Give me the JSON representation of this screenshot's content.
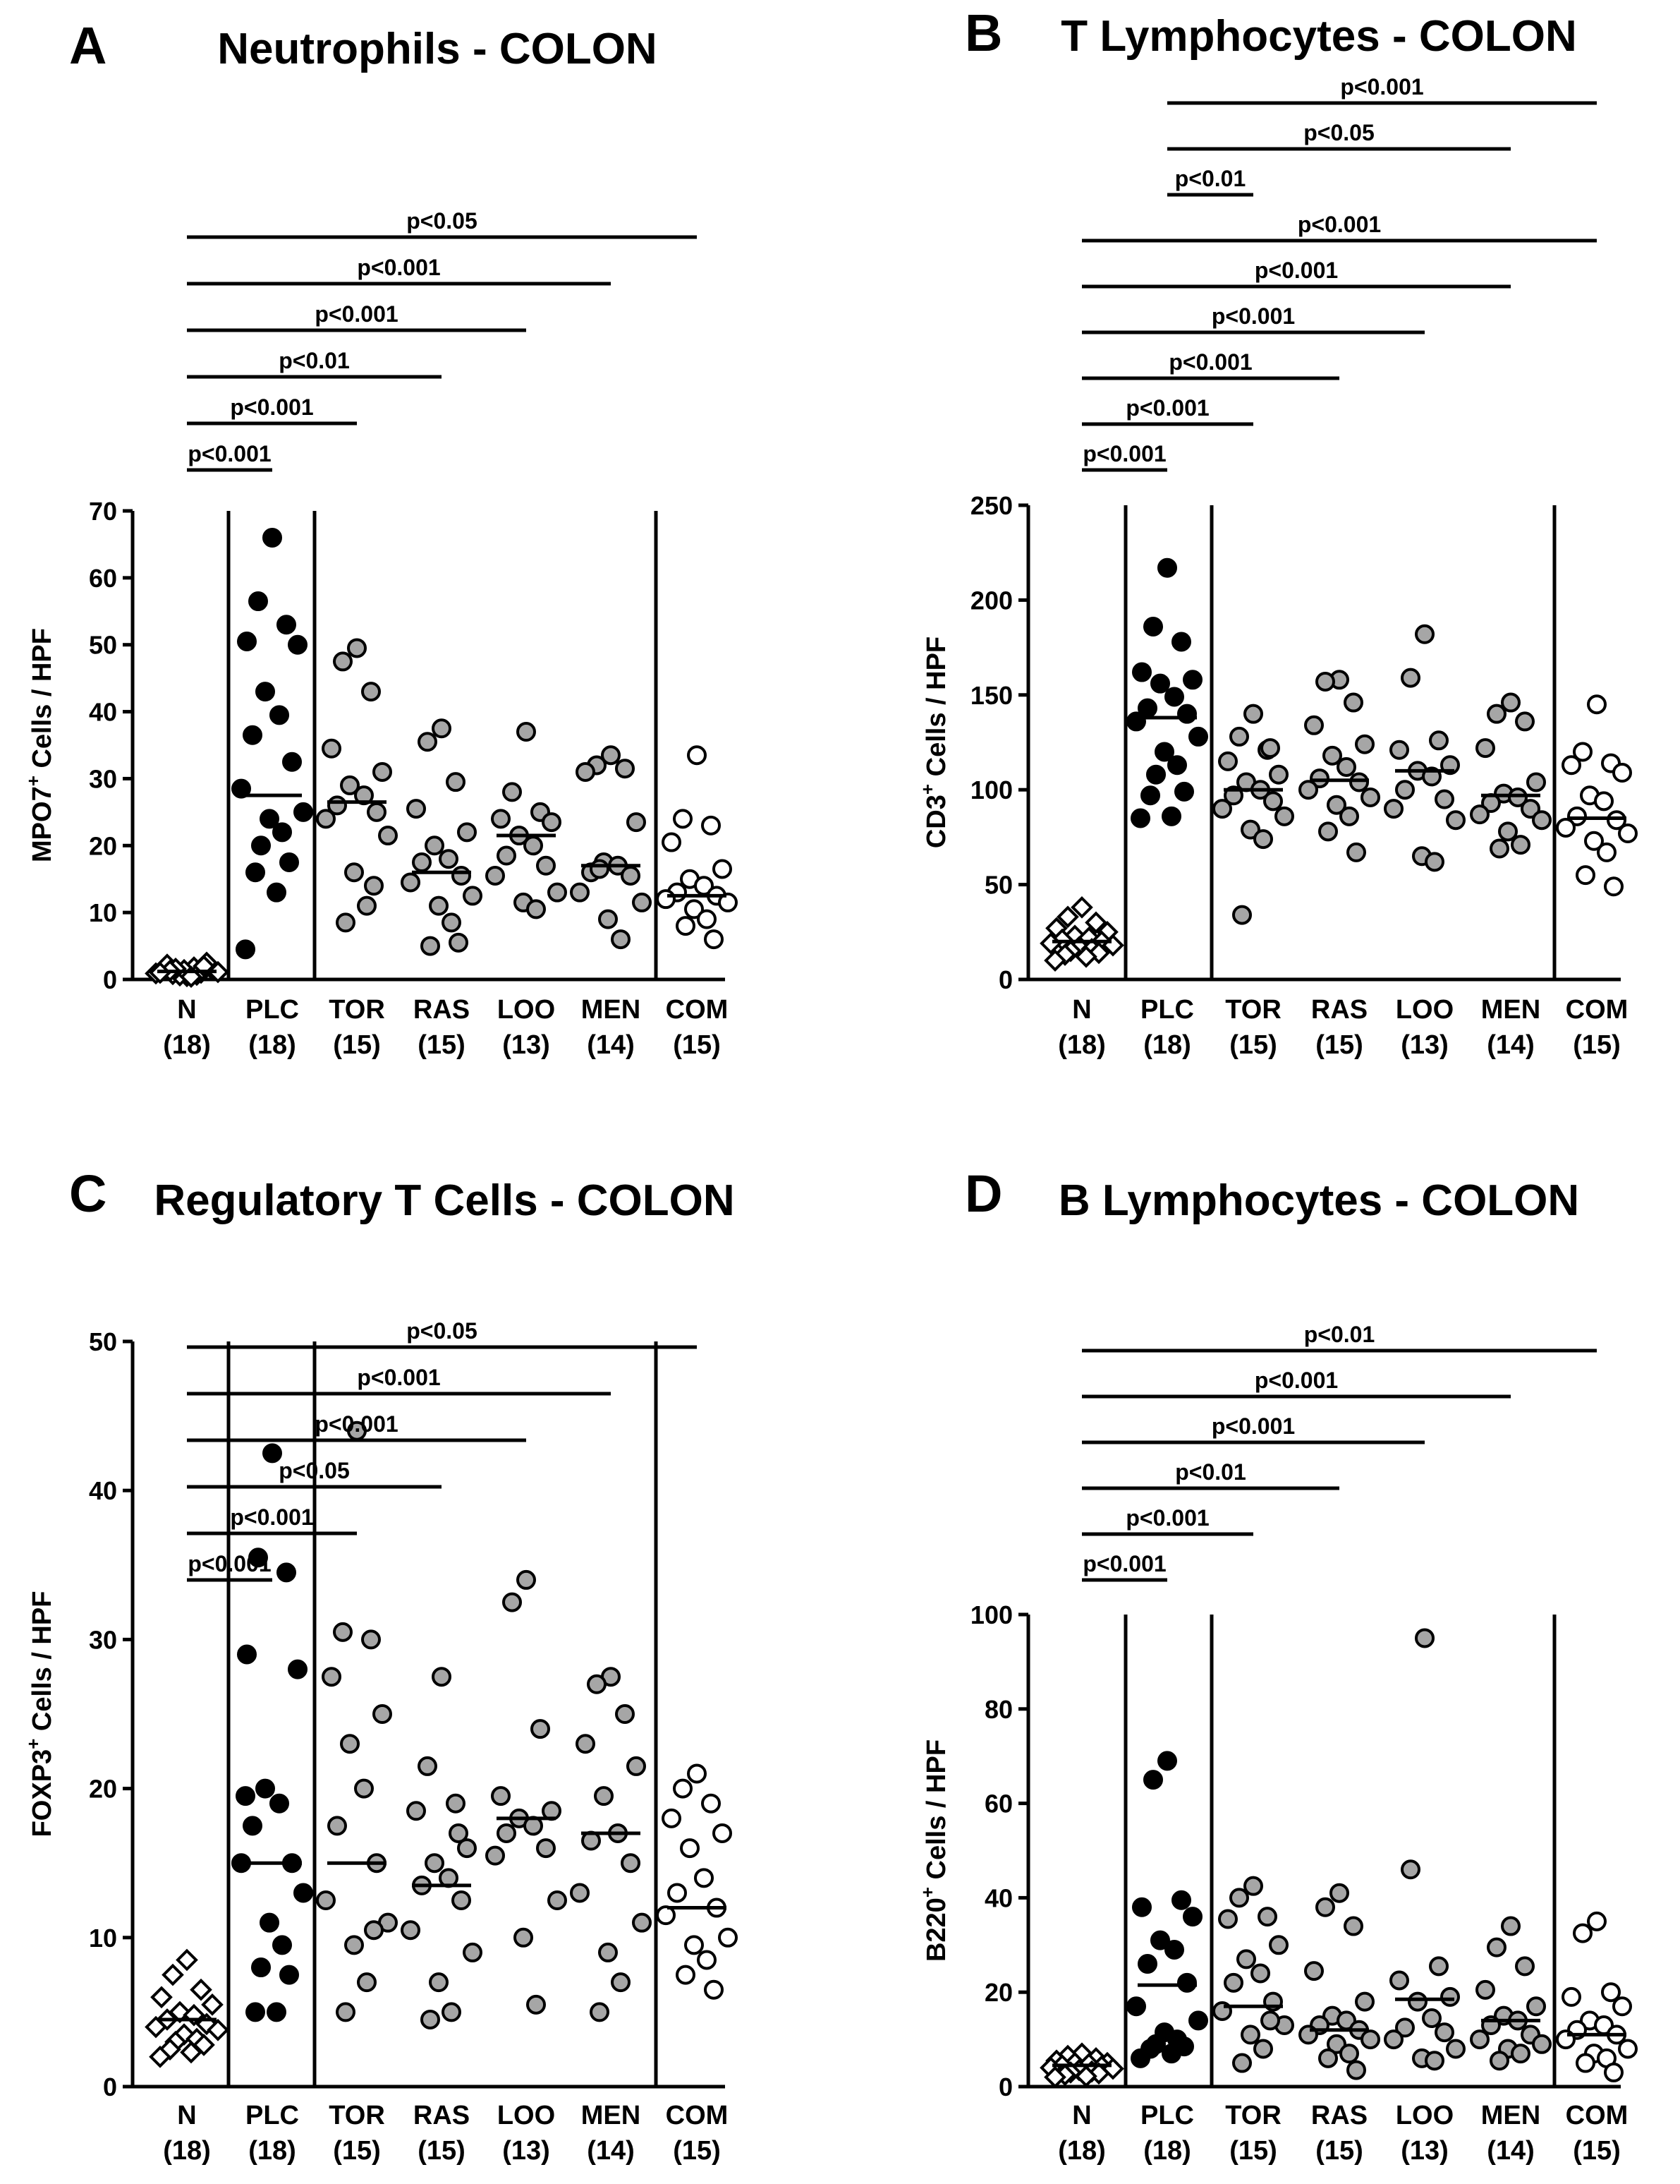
{
  "chart_data": [
    {
      "panel": "A",
      "type": "scatter",
      "title": "Neutrophils - COLON",
      "ylabel_main": "MPO7",
      "ylabel_sup": "+",
      "ylabel_rest": "  Cells / HPF",
      "ylim": [
        0,
        70
      ],
      "yticks": [
        0,
        10,
        20,
        30,
        40,
        50,
        60,
        70
      ],
      "dividers_after": [
        0,
        1,
        5
      ],
      "categories": [
        {
          "label": "N",
          "n": "(18)",
          "style": "diamond",
          "median": 1.2,
          "values": [
            0.5,
            0.8,
            1.0,
            1.2,
            1.5,
            0.6,
            1.8,
            2.2,
            2.5,
            0.9,
            1.1,
            1.4,
            0.7,
            1.6,
            2.0,
            1.3,
            0.4,
            1.0
          ]
        },
        {
          "label": "PLC",
          "n": "(18)",
          "style": "black",
          "median": 27.5,
          "values": [
            66,
            56.5,
            53,
            50.5,
            50,
            43,
            39.5,
            36.5,
            32.5,
            28.5,
            25,
            24,
            22,
            20,
            17.5,
            16,
            13,
            4.5
          ]
        },
        {
          "label": "TOR",
          "n": "(15)",
          "style": "gray",
          "median": 26.5,
          "values": [
            49.5,
            47.5,
            43,
            34.5,
            31,
            29,
            27.5,
            26,
            25,
            24,
            21.5,
            16,
            11,
            8.5,
            14
          ]
        },
        {
          "label": "RAS",
          "n": "(15)",
          "style": "gray",
          "median": 16,
          "values": [
            37.5,
            35.5,
            29.5,
            25.5,
            22,
            20,
            18,
            17.5,
            15.5,
            14.5,
            12.5,
            11,
            8.5,
            5,
            5.5
          ]
        },
        {
          "label": "LOO",
          "n": "(13)",
          "style": "gray",
          "median": 21.5,
          "values": [
            37,
            28,
            25,
            24,
            23.5,
            21.5,
            20,
            18.5,
            17,
            15.5,
            13,
            11.5,
            10.5
          ]
        },
        {
          "label": "MEN",
          "n": "(14)",
          "style": "gray",
          "median": 17,
          "values": [
            33.5,
            32,
            31.5,
            31,
            23.5,
            17.5,
            17,
            16,
            15.5,
            13,
            11.5,
            9,
            6,
            16.5
          ]
        },
        {
          "label": "COM",
          "n": "(15)",
          "style": "white",
          "median": 12.5,
          "values": [
            33.5,
            24,
            23,
            20.5,
            16.5,
            15,
            14,
            13,
            12.5,
            12,
            11.5,
            10.5,
            9,
            8,
            6
          ]
        }
      ],
      "comparisons": [
        {
          "from": "N",
          "to": "PLC",
          "label": "p<0.001"
        },
        {
          "from": "N",
          "to": "TOR",
          "label": "p<0.001"
        },
        {
          "from": "N",
          "to": "RAS",
          "label": "p<0.01"
        },
        {
          "from": "N",
          "to": "LOO",
          "label": "p<0.001"
        },
        {
          "from": "N",
          "to": "MEN",
          "label": "p<0.001"
        },
        {
          "from": "N",
          "to": "COM",
          "label": "p<0.05"
        }
      ]
    },
    {
      "panel": "B",
      "type": "scatter",
      "title": "T Lymphocytes - COLON",
      "ylabel_main": "CD3",
      "ylabel_sup": "+",
      "ylabel_rest": " Cells / HPF",
      "ylim": [
        0,
        250
      ],
      "yticks": [
        0,
        50,
        100,
        150,
        200,
        250
      ],
      "dividers_after": [
        0,
        1,
        5
      ],
      "categories": [
        {
          "label": "N",
          "n": "(18)",
          "style": "diamond",
          "median": 20,
          "values": [
            38,
            33,
            30,
            27,
            25,
            23,
            22,
            21,
            20,
            19,
            18,
            17,
            16,
            15,
            14,
            13,
            12,
            10
          ]
        },
        {
          "label": "PLC",
          "n": "(18)",
          "style": "black",
          "median": 138,
          "values": [
            217,
            186,
            178,
            162,
            158,
            156,
            149,
            143,
            140,
            136,
            128,
            120,
            113,
            108,
            99,
            97,
            86,
            85
          ]
        },
        {
          "label": "TOR",
          "n": "(15)",
          "style": "gray",
          "median": 100,
          "values": [
            140,
            128,
            121,
            115,
            108,
            104,
            100,
            97,
            94,
            90,
            86,
            79,
            74,
            34,
            122
          ]
        },
        {
          "label": "RAS",
          "n": "(15)",
          "style": "gray",
          "median": 105,
          "values": [
            158,
            157,
            146,
            134,
            124,
            118,
            112,
            106,
            104,
            100,
            96,
            92,
            86,
            78,
            67
          ]
        },
        {
          "label": "LOO",
          "n": "(13)",
          "style": "gray",
          "median": 110,
          "values": [
            182,
            159,
            126,
            121,
            113,
            110,
            107,
            100,
            95,
            90,
            84,
            65,
            62
          ]
        },
        {
          "label": "MEN",
          "n": "(14)",
          "style": "gray",
          "median": 97,
          "values": [
            146,
            140,
            136,
            122,
            104,
            98,
            96,
            93,
            90,
            87,
            84,
            78,
            71,
            69
          ]
        },
        {
          "label": "COM",
          "n": "(15)",
          "style": "white",
          "median": 85,
          "values": [
            145,
            120,
            114,
            113,
            109,
            97,
            94,
            86,
            84,
            80,
            77,
            73,
            67,
            55,
            49
          ]
        }
      ],
      "comparisons": [
        {
          "from": "N",
          "to": "PLC",
          "label": "p<0.001"
        },
        {
          "from": "N",
          "to": "TOR",
          "label": "p<0.001"
        },
        {
          "from": "N",
          "to": "RAS",
          "label": "p<0.001"
        },
        {
          "from": "N",
          "to": "LOO",
          "label": "p<0.001"
        },
        {
          "from": "N",
          "to": "MEN",
          "label": "p<0.001"
        },
        {
          "from": "N",
          "to": "COM",
          "label": "p<0.001"
        },
        {
          "from": "PLC",
          "to": "TOR",
          "label": "p<0.01"
        },
        {
          "from": "PLC",
          "to": "MEN",
          "label": "p<0.05"
        },
        {
          "from": "PLC",
          "to": "COM",
          "label": "p<0.001"
        }
      ]
    },
    {
      "panel": "C",
      "type": "scatter",
      "title": "Regulatory T Cells - COLON",
      "ylabel_main": "FOXP3",
      "ylabel_sup": "+",
      "ylabel_rest": " Cells / HPF",
      "ylim": [
        0,
        50
      ],
      "yticks": [
        0,
        10,
        20,
        30,
        40,
        50
      ],
      "dividers_after": [
        0,
        1,
        5
      ],
      "categories": [
        {
          "label": "N",
          "n": "(18)",
          "style": "diamond",
          "median": 4.5,
          "values": [
            8.5,
            7.5,
            6.5,
            6,
            5.5,
            5,
            4.8,
            4.5,
            4.2,
            4,
            3.8,
            3.5,
            3.2,
            3,
            2.8,
            2.5,
            2.3,
            2
          ]
        },
        {
          "label": "PLC",
          "n": "(18)",
          "style": "black",
          "median": 15,
          "values": [
            42.5,
            35.5,
            34.5,
            29,
            28,
            20,
            19,
            17.5,
            15,
            15,
            13,
            11,
            9.5,
            8,
            7.5,
            5,
            5,
            19.5
          ]
        },
        {
          "label": "TOR",
          "n": "(15)",
          "style": "gray",
          "median": 15,
          "values": [
            44,
            30.5,
            30,
            27.5,
            25,
            23,
            20,
            17.5,
            15,
            12.5,
            11,
            9.5,
            7,
            5,
            10.5
          ]
        },
        {
          "label": "RAS",
          "n": "(15)",
          "style": "gray",
          "median": 13.5,
          "values": [
            27.5,
            21.5,
            19,
            18.5,
            16,
            15,
            14,
            13.5,
            12.5,
            10.5,
            9,
            7,
            5,
            4.5,
            17
          ]
        },
        {
          "label": "LOO",
          "n": "(13)",
          "style": "gray",
          "median": 18,
          "values": [
            34,
            32.5,
            24,
            19.5,
            18.5,
            18,
            17.5,
            17,
            16,
            15.5,
            12.5,
            10,
            5.5
          ]
        },
        {
          "label": "MEN",
          "n": "(14)",
          "style": "gray",
          "median": 17,
          "values": [
            27.5,
            27,
            25,
            23,
            21.5,
            19.5,
            17,
            16.5,
            15,
            13,
            11,
            9,
            7,
            5
          ]
        },
        {
          "label": "COM",
          "n": "(15)",
          "style": "white",
          "median": 12,
          "values": [
            21,
            20,
            19,
            18,
            17,
            16,
            14,
            13,
            12,
            11.5,
            10,
            9.5,
            8.5,
            7.5,
            6.5
          ]
        }
      ],
      "comparisons": [
        {
          "from": "N",
          "to": "PLC",
          "label": "p<0.001"
        },
        {
          "from": "N",
          "to": "TOR",
          "label": "p<0.001"
        },
        {
          "from": "N",
          "to": "RAS",
          "label": "p<0.05"
        },
        {
          "from": "N",
          "to": "LOO",
          "label": "p<0.001"
        },
        {
          "from": "N",
          "to": "MEN",
          "label": "p<0.001"
        },
        {
          "from": "N",
          "to": "COM",
          "label": "p<0.05"
        }
      ]
    },
    {
      "panel": "D",
      "type": "scatter",
      "title": "B Lymphocytes - COLON",
      "ylabel_main": "B220",
      "ylabel_sup": "+",
      "ylabel_rest": " Cells / HPF",
      "ylim": [
        0,
        100
      ],
      "yticks": [
        0,
        20,
        40,
        60,
        80,
        100
      ],
      "dividers_after": [
        0,
        1,
        5
      ],
      "categories": [
        {
          "label": "N",
          "n": "(18)",
          "style": "diamond",
          "median": 4.5,
          "values": [
            7,
            6.5,
            6,
            5.5,
            5,
            5,
            4.8,
            4.5,
            4.3,
            4,
            3.8,
            3.5,
            3.2,
            3,
            2.8,
            2.5,
            2.2,
            2
          ]
        },
        {
          "label": "PLC",
          "n": "(18)",
          "style": "black",
          "median": 21.5,
          "values": [
            69,
            65,
            39.5,
            38,
            36,
            31,
            29,
            26,
            22,
            17,
            14,
            11.5,
            10,
            9,
            8.5,
            8,
            7,
            6
          ]
        },
        {
          "label": "TOR",
          "n": "(15)",
          "style": "gray",
          "median": 17,
          "values": [
            42.5,
            40,
            36,
            35.5,
            30,
            27,
            24,
            22,
            18,
            16,
            13,
            11,
            8,
            5,
            14
          ]
        },
        {
          "label": "RAS",
          "n": "(15)",
          "style": "gray",
          "median": 12,
          "values": [
            41,
            38,
            34,
            24.5,
            18,
            15,
            14,
            13,
            12,
            11,
            10,
            9,
            7,
            6,
            3.5
          ]
        },
        {
          "label": "LOO",
          "n": "(13)",
          "style": "gray",
          "median": 18.5,
          "values": [
            95,
            46,
            25.5,
            22.5,
            19,
            18,
            14.5,
            12.5,
            11.5,
            10,
            8,
            6,
            5.5
          ]
        },
        {
          "label": "MEN",
          "n": "(14)",
          "style": "gray",
          "median": 14,
          "values": [
            34,
            29.5,
            25.5,
            20.5,
            17,
            15,
            14,
            13,
            11,
            10,
            9,
            8,
            7,
            5.5
          ]
        },
        {
          "label": "COM",
          "n": "(15)",
          "style": "white",
          "median": 11,
          "values": [
            35,
            32.5,
            20,
            19,
            17,
            14,
            13,
            12,
            11,
            10,
            8,
            7,
            6,
            5,
            3
          ]
        }
      ],
      "comparisons": [
        {
          "from": "N",
          "to": "PLC",
          "label": "p<0.001"
        },
        {
          "from": "N",
          "to": "TOR",
          "label": "p<0.001"
        },
        {
          "from": "N",
          "to": "RAS",
          "label": "p<0.01"
        },
        {
          "from": "N",
          "to": "LOO",
          "label": "p<0.001"
        },
        {
          "from": "N",
          "to": "MEN",
          "label": "p<0.001"
        },
        {
          "from": "N",
          "to": "COM",
          "label": "p<0.01"
        }
      ]
    }
  ],
  "colors": {
    "black_fill": "#000000",
    "gray_fill": "#a6a6a6",
    "white_fill": "#ffffff",
    "stroke": "#000000"
  }
}
